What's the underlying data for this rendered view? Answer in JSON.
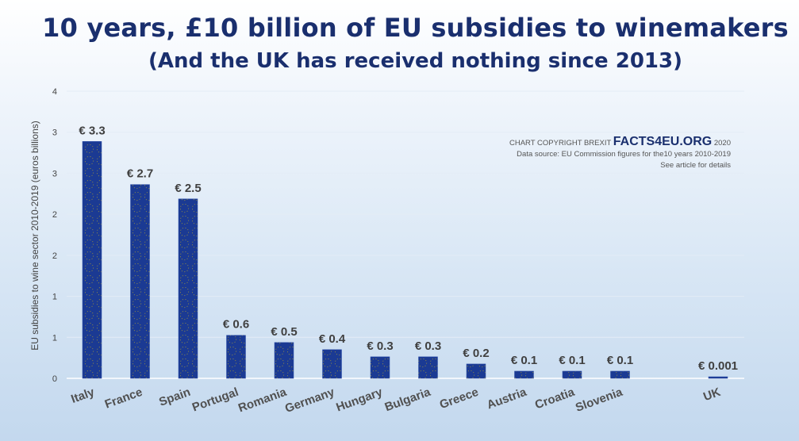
{
  "chart_data": {
    "type": "bar",
    "title": "10 years, £10 billion of EU subsidies to winemakers",
    "subtitle": "(And the UK has received nothing since 2013)",
    "ylabel": "EU subsidies to wine sector 2010-2019 (euros billions)",
    "xlabel": "",
    "ylim": [
      0,
      4
    ],
    "y_tick_labels": [
      "0",
      "1",
      "1",
      "2",
      "2",
      "3",
      "3",
      "4"
    ],
    "grid": true,
    "categories": [
      "Italy",
      "France",
      "Spain",
      "Portugal",
      "Romania",
      "Germany",
      "Hungary",
      "Bulgaria",
      "Greece",
      "Austria",
      "Croatia",
      "Slovenia",
      "UK"
    ],
    "values": [
      3.3,
      2.7,
      2.5,
      0.6,
      0.5,
      0.4,
      0.3,
      0.3,
      0.2,
      0.1,
      0.1,
      0.1,
      0.001
    ],
    "data_labels": [
      "€ 3.3",
      "€ 2.7",
      "€ 2.5",
      "€ 0.6",
      "€ 0.5",
      "€ 0.4",
      "€ 0.3",
      "€ 0.3",
      "€ 0.2",
      "€ 0.1",
      "€ 0.1",
      "€ 0.1",
      "€ 0.001"
    ],
    "bar_color": "#1b3a93",
    "star_color": "#f5d000"
  },
  "credit": {
    "prefix": "CHART COPYRIGHT BREXIT",
    "brand": "FACTS4EU.ORG",
    "year": "2020",
    "source": "Data source: EU Commission figures for  the10 years 2010-2019",
    "note": "See article for details"
  }
}
